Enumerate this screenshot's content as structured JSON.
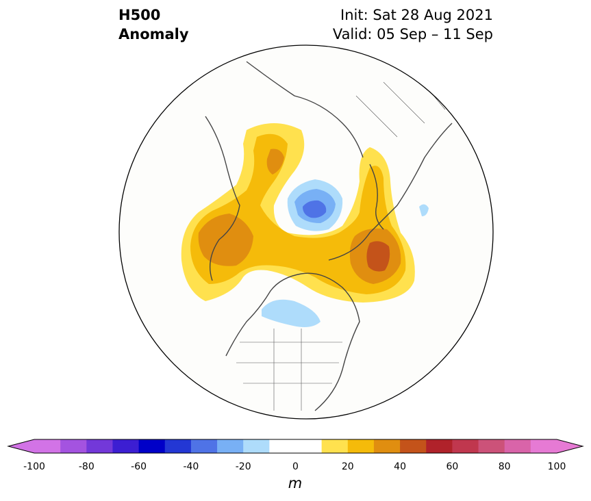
{
  "title": {
    "left_line1": "H500",
    "left_line2": "Anomaly",
    "right_line1": "Init: Sat 28 Aug 2021",
    "right_line2": "Valid: 05 Sep – 11 Sep"
  },
  "colorbar": {
    "unit": "m",
    "ticks": [
      "-100",
      "-80",
      "-60",
      "-40",
      "-20",
      "0",
      "20",
      "40",
      "60",
      "80",
      "100"
    ],
    "levels": [
      -100,
      -90,
      -80,
      -70,
      -60,
      -50,
      -40,
      -30,
      -20,
      -10,
      10,
      20,
      30,
      40,
      50,
      60,
      70,
      80,
      90,
      100
    ],
    "colors": [
      "#d273e6",
      "#a453e0",
      "#7338d9",
      "#3c1ed2",
      "#0000c8",
      "#2337d4",
      "#4f73e6",
      "#78b0f5",
      "#aedcfb",
      "#ffffff",
      "#ffe14e",
      "#f5bb0a",
      "#e08e10",
      "#c4531a",
      "#b0222a",
      "#c0374e",
      "#cc5279",
      "#d964a9",
      "#e67ad4"
    ],
    "under_color": "#d273e6",
    "over_color": "#e67ad4",
    "extend": "both"
  },
  "map": {
    "projection": "north-polar-stereographic",
    "anomaly_centers": [
      {
        "name": "western-russia-ridge",
        "peak_m": 35
      },
      {
        "name": "alaska-ridge",
        "peak_m": 35
      },
      {
        "name": "greenland-ridge",
        "peak_m": 45
      },
      {
        "name": "arctic-trough",
        "peak_m": -45
      },
      {
        "name": "hudson-bay-trough",
        "peak_m": -15
      }
    ]
  }
}
